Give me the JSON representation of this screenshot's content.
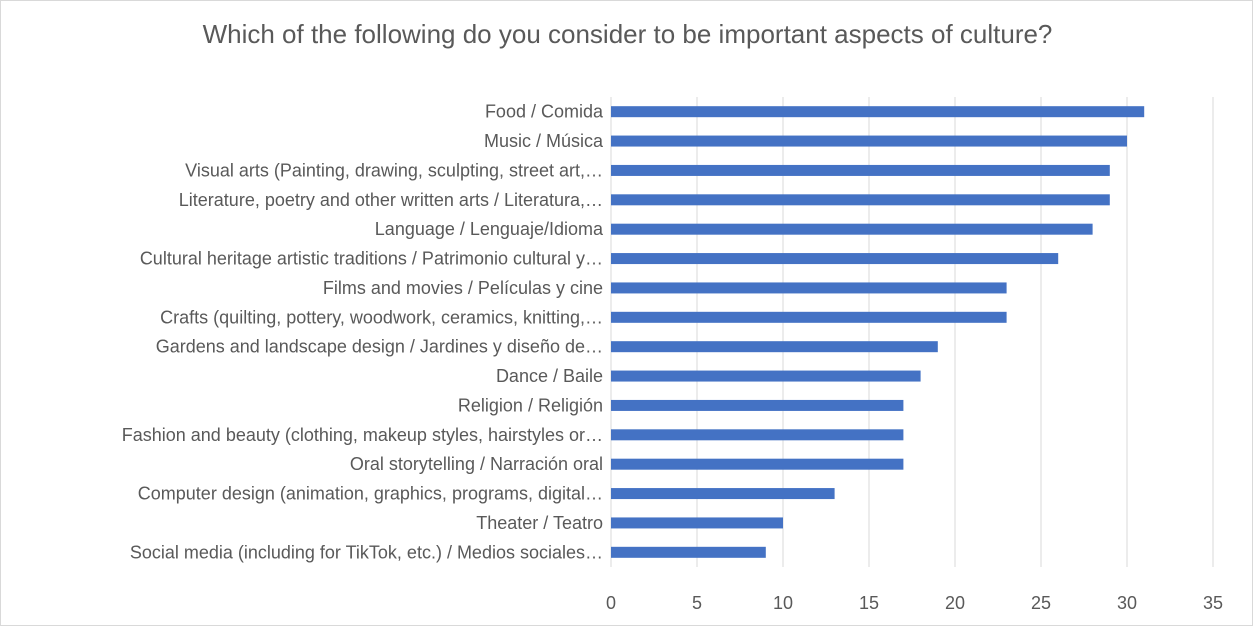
{
  "chart_data": {
    "type": "bar",
    "orientation": "horizontal",
    "title": "Which of the following do you consider to be important aspects of culture?",
    "xlabel": "",
    "ylabel": "",
    "categories": [
      "Food / Comida",
      "Music / Música",
      "Visual arts (Painting, drawing, sculpting, street art,…",
      "Literature, poetry and other written arts / Literatura,…",
      "Language / Lenguaje/Idioma",
      "Cultural heritage artistic traditions / Patrimonio cultural y…",
      "Films and movies / Películas y cine",
      "Crafts (quilting, pottery, woodwork, ceramics, knitting,…",
      "Gardens and landscape design / Jardines y diseño de…",
      "Dance / Baile",
      "Religion / Religión",
      "Fashion and beauty (clothing, makeup styles, hairstyles or…",
      "Oral storytelling / Narración oral",
      "Computer design (animation, graphics, programs, digital…",
      "Theater / Teatro",
      "Social media (including for TikTok, etc.) / Medios sociales…"
    ],
    "values": [
      31,
      30,
      29,
      29,
      28,
      26,
      23,
      23,
      19,
      18,
      17,
      17,
      17,
      13,
      10,
      9
    ],
    "xlim": [
      0,
      35
    ],
    "xticks": [
      0,
      5,
      10,
      15,
      20,
      25,
      30,
      35
    ],
    "grid": "vertical",
    "legend": "none",
    "bar_color": "#4472c4",
    "grid_color": "#d9d9d9",
    "text_color": "#595959"
  }
}
